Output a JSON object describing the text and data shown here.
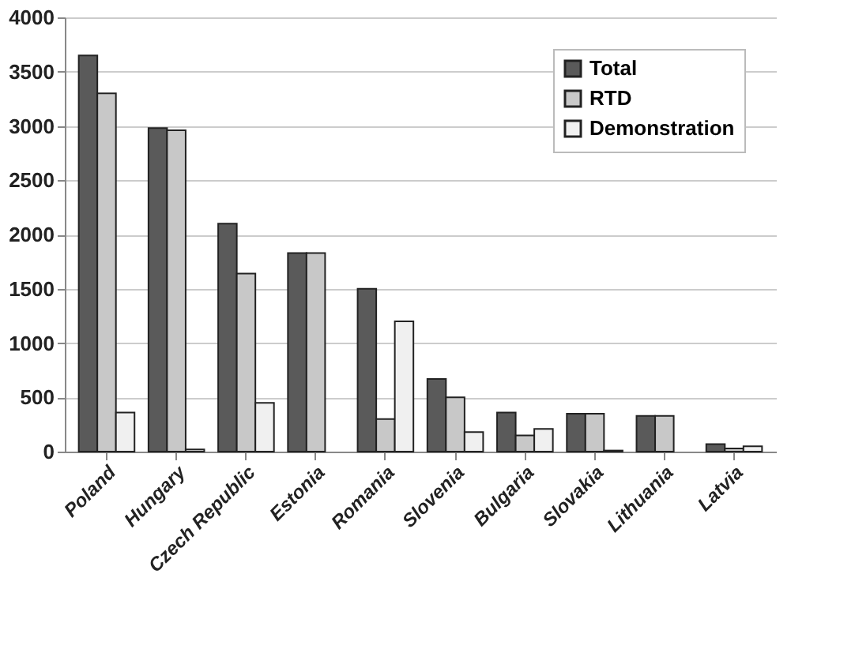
{
  "chart_data": {
    "type": "bar",
    "categories": [
      "Poland",
      "Hungary",
      "Czech Republic",
      "Estonia",
      "Romania",
      "Slovenia",
      "Bulgaria",
      "Slovakia",
      "Lithuania",
      "Latvia"
    ],
    "series": [
      {
        "name": "Total",
        "color": "#5a5a5a",
        "values": [
          3650,
          2980,
          2100,
          1830,
          1500,
          670,
          360,
          350,
          330,
          70
        ]
      },
      {
        "name": "RTD",
        "color": "#c8c8c8",
        "values": [
          3300,
          2960,
          1640,
          1830,
          300,
          500,
          150,
          350,
          330,
          30
        ]
      },
      {
        "name": "Demonstration",
        "color": "#f0f0f0",
        "values": [
          360,
          20,
          450,
          null,
          1200,
          180,
          210,
          10,
          null,
          50
        ]
      }
    ],
    "ylim": [
      0,
      4000
    ],
    "yticks": [
      0,
      500,
      1000,
      1500,
      2000,
      2500,
      3000,
      3500,
      4000
    ],
    "grid": "y",
    "legend": "top right"
  }
}
